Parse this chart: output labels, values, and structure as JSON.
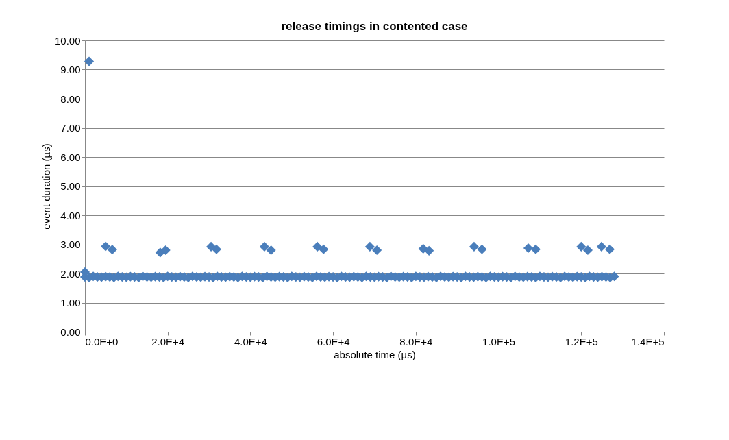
{
  "chart_data": {
    "type": "scatter",
    "title": "release timings in contented case",
    "xlabel": "absolute time (µs)",
    "ylabel": "event duration (µs)",
    "xlim": [
      0,
      140000
    ],
    "ylim": [
      0,
      10
    ],
    "xticks": [
      {
        "value": 0,
        "label": "0.0E+0"
      },
      {
        "value": 20000,
        "label": "2.0E+4"
      },
      {
        "value": 40000,
        "label": "4.0E+4"
      },
      {
        "value": 60000,
        "label": "6.0E+4"
      },
      {
        "value": 80000,
        "label": "8.0E+4"
      },
      {
        "value": 100000,
        "label": "1.0E+5"
      },
      {
        "value": 120000,
        "label": "1.2E+5"
      },
      {
        "value": 140000,
        "label": "1.4E+5"
      }
    ],
    "yticks": [
      {
        "value": 0,
        "label": "0.00"
      },
      {
        "value": 1,
        "label": "1.00"
      },
      {
        "value": 2,
        "label": "2.00"
      },
      {
        "value": 3,
        "label": "3.00"
      },
      {
        "value": 4,
        "label": "4.00"
      },
      {
        "value": 5,
        "label": "5.00"
      },
      {
        "value": 6,
        "label": "6.00"
      },
      {
        "value": 7,
        "label": "7.00"
      },
      {
        "value": 8,
        "label": "8.00"
      },
      {
        "value": 9,
        "label": "9.00"
      },
      {
        "value": 10,
        "label": "10.00"
      }
    ],
    "grid": "y",
    "legend": false,
    "marker": "diamond",
    "series": [
      {
        "color": "#4a7ebb",
        "x": [
          1000,
          0,
          5000,
          6600,
          18200,
          19500,
          30500,
          31800,
          43400,
          45000,
          56200,
          57700,
          68900,
          70600,
          81800,
          83200,
          94100,
          96000,
          107200,
          109000,
          120000,
          121600,
          124900,
          126900,
          0,
          1000,
          2000,
          3000,
          4000,
          5000,
          6000,
          7000,
          8000,
          9000,
          10000,
          11000,
          12000,
          13000,
          14000,
          15000,
          16000,
          17000,
          18000,
          19000,
          20000,
          21000,
          22000,
          23000,
          24000,
          25000,
          26000,
          27000,
          28000,
          29000,
          30000,
          31000,
          32000,
          33000,
          34000,
          35000,
          36000,
          37000,
          38000,
          39000,
          40000,
          41000,
          42000,
          43000,
          44000,
          45000,
          46000,
          47000,
          48000,
          49000,
          50000,
          51000,
          52000,
          53000,
          54000,
          55000,
          56000,
          57000,
          58000,
          59000,
          60000,
          61000,
          62000,
          63000,
          64000,
          65000,
          66000,
          67000,
          68000,
          69000,
          70000,
          71000,
          72000,
          73000,
          74000,
          75000,
          76000,
          77000,
          78000,
          79000,
          80000,
          81000,
          82000,
          83000,
          84000,
          85000,
          86000,
          87000,
          88000,
          89000,
          90000,
          91000,
          92000,
          93000,
          94000,
          95000,
          96000,
          97000,
          98000,
          99000,
          100000,
          101000,
          102000,
          103000,
          104000,
          105000,
          106000,
          107000,
          108000,
          109000,
          110000,
          111000,
          112000,
          113000,
          114000,
          115000,
          116000,
          117000,
          118000,
          119000,
          120000,
          121000,
          122000,
          123000,
          124000,
          125000,
          126000,
          127000,
          128000
        ],
        "values": [
          9.28,
          2.05,
          2.93,
          2.82,
          2.72,
          2.8,
          2.92,
          2.83,
          2.92,
          2.8,
          2.92,
          2.83,
          2.92,
          2.8,
          2.85,
          2.78,
          2.92,
          2.83,
          2.87,
          2.83,
          2.92,
          2.8,
          2.92,
          2.83,
          1.88,
          1.86,
          1.9,
          1.88,
          1.87,
          1.89,
          1.88,
          1.86,
          1.9,
          1.88,
          1.87,
          1.89,
          1.88,
          1.86,
          1.9,
          1.88,
          1.87,
          1.89,
          1.88,
          1.86,
          1.9,
          1.88,
          1.87,
          1.89,
          1.88,
          1.86,
          1.9,
          1.88,
          1.87,
          1.89,
          1.88,
          1.86,
          1.9,
          1.88,
          1.87,
          1.89,
          1.88,
          1.86,
          1.9,
          1.88,
          1.87,
          1.89,
          1.88,
          1.86,
          1.9,
          1.88,
          1.87,
          1.89,
          1.88,
          1.86,
          1.9,
          1.88,
          1.87,
          1.89,
          1.88,
          1.86,
          1.9,
          1.88,
          1.87,
          1.89,
          1.88,
          1.86,
          1.9,
          1.88,
          1.87,
          1.89,
          1.88,
          1.86,
          1.9,
          1.88,
          1.87,
          1.89,
          1.88,
          1.86,
          1.9,
          1.88,
          1.87,
          1.89,
          1.88,
          1.86,
          1.9,
          1.88,
          1.87,
          1.89,
          1.88,
          1.86,
          1.9,
          1.88,
          1.87,
          1.89,
          1.88,
          1.86,
          1.9,
          1.88,
          1.87,
          1.89,
          1.88,
          1.86,
          1.9,
          1.88,
          1.87,
          1.89,
          1.88,
          1.86,
          1.9,
          1.88,
          1.87,
          1.89,
          1.88,
          1.86,
          1.9,
          1.88,
          1.87,
          1.89,
          1.88,
          1.86,
          1.9,
          1.88,
          1.87,
          1.89,
          1.88,
          1.86,
          1.9,
          1.88,
          1.87,
          1.89,
          1.88,
          1.86,
          1.9
        ]
      }
    ]
  }
}
